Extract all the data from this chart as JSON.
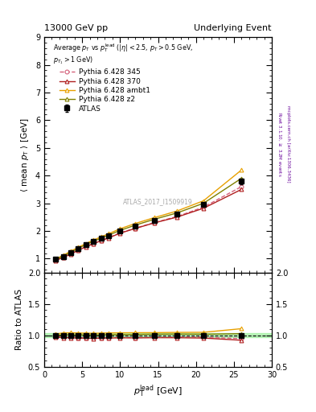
{
  "title_left": "13000 GeV pp",
  "title_right": "Underlying Event",
  "watermark": "ATLAS_2017_I1509919",
  "ylim_main": [
    0.5,
    9.0
  ],
  "ylim_ratio": [
    0.5,
    2.0
  ],
  "xlim": [
    0,
    30
  ],
  "yticks_main": [
    1,
    2,
    3,
    4,
    5,
    6,
    7,
    8,
    9
  ],
  "yticks_ratio": [
    0.5,
    1.0,
    1.5,
    2.0
  ],
  "xticks": [
    0,
    5,
    10,
    15,
    20,
    25,
    30
  ],
  "atlas_x": [
    1.5,
    2.5,
    3.5,
    4.5,
    5.5,
    6.5,
    7.5,
    8.5,
    10.0,
    12.0,
    14.5,
    17.5,
    21.0,
    26.0
  ],
  "atlas_y": [
    0.97,
    1.08,
    1.22,
    1.36,
    1.5,
    1.62,
    1.73,
    1.83,
    2.0,
    2.18,
    2.38,
    2.6,
    2.95,
    3.8
  ],
  "atlas_yerr": [
    0.02,
    0.02,
    0.02,
    0.02,
    0.02,
    0.02,
    0.02,
    0.02,
    0.03,
    0.03,
    0.04,
    0.05,
    0.06,
    0.1
  ],
  "p345_x": [
    1.5,
    2.5,
    3.5,
    4.5,
    5.5,
    6.5,
    7.5,
    8.5,
    10.0,
    12.0,
    14.5,
    17.5,
    21.0,
    26.0
  ],
  "p345_y": [
    0.95,
    1.05,
    1.18,
    1.31,
    1.44,
    1.55,
    1.66,
    1.76,
    1.93,
    2.1,
    2.3,
    2.52,
    2.86,
    3.6
  ],
  "p370_x": [
    1.5,
    2.5,
    3.5,
    4.5,
    5.5,
    6.5,
    7.5,
    8.5,
    10.0,
    12.0,
    14.5,
    17.5,
    21.0,
    26.0
  ],
  "p370_y": [
    0.94,
    1.04,
    1.17,
    1.3,
    1.43,
    1.54,
    1.65,
    1.75,
    1.92,
    2.09,
    2.29,
    2.5,
    2.82,
    3.5
  ],
  "pambt1_x": [
    1.5,
    2.5,
    3.5,
    4.5,
    5.5,
    6.5,
    7.5,
    8.5,
    10.0,
    12.0,
    14.5,
    17.5,
    21.0,
    26.0
  ],
  "pambt1_y": [
    0.99,
    1.12,
    1.27,
    1.41,
    1.55,
    1.67,
    1.79,
    1.9,
    2.08,
    2.27,
    2.48,
    2.72,
    3.09,
    4.2
  ],
  "pz2_x": [
    1.5,
    2.5,
    3.5,
    4.5,
    5.5,
    6.5,
    7.5,
    8.5,
    10.0,
    12.0,
    14.5,
    17.5,
    21.0,
    26.0
  ],
  "pz2_y": [
    0.97,
    1.09,
    1.23,
    1.37,
    1.51,
    1.63,
    1.74,
    1.85,
    2.02,
    2.21,
    2.42,
    2.65,
    3.0,
    3.9
  ],
  "color_atlas": "#000000",
  "color_p345": "#d4607a",
  "color_p370": "#b02020",
  "color_pambt1": "#e8a000",
  "color_pz2": "#808000",
  "ratio_band_color": "#90ee90",
  "ratio_band_alpha": 0.6
}
